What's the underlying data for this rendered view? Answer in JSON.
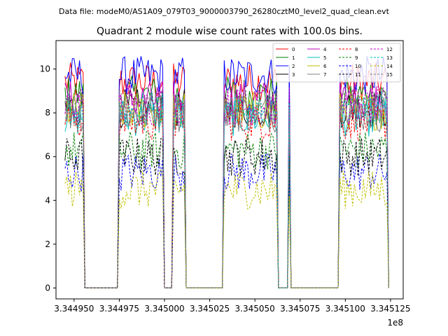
{
  "header": {
    "datafile_text": "Data file: modeM0/AS1A09_079T03_9000003790_26280cztM0_level2_quad_clean.evt"
  },
  "chart_data": {
    "type": "line",
    "title": "Quadrant 2 module wise count rates with 100.0s bins.",
    "xlabel": "",
    "ylabel": "",
    "x_offset_label": "1e8",
    "x_scale": 100000000,
    "xlim": [
      3.34494,
      3.345132
    ],
    "ylim": [
      -0.5,
      11.3
    ],
    "xticks": [
      3.34495,
      3.344975,
      3.345,
      3.345025,
      3.34505,
      3.345075,
      3.3451,
      3.345125
    ],
    "xtick_labels": [
      "3.344950",
      "3.344975",
      "3.345000",
      "3.345025",
      "3.345050",
      "3.345075",
      "3.345100",
      "3.345125"
    ],
    "yticks": [
      0,
      2,
      4,
      6,
      8,
      10
    ],
    "ytick_labels": [
      "0",
      "2",
      "4",
      "6",
      "8",
      "10"
    ],
    "legend_position": "top-right",
    "gti_segments": [
      {
        "start": 3.344945,
        "end": 3.344956
      },
      {
        "start": 3.344975,
        "end": 3.345
      },
      {
        "start": 3.345005,
        "end": 3.3450115
      },
      {
        "start": 3.345033,
        "end": 3.345063
      },
      {
        "start": 3.3450665,
        "end": 3.345067
      },
      {
        "start": 3.3450685,
        "end": 3.3450695
      },
      {
        "start": 3.345097,
        "end": 3.345124
      }
    ],
    "bin_width": 1e-06,
    "series": [
      {
        "name": "0",
        "color": "#ff0000",
        "dash": "solid",
        "mean": 9.4
      },
      {
        "name": "1",
        "color": "#008000",
        "dash": "solid",
        "mean": 8.8
      },
      {
        "name": "2",
        "color": "#0000ff",
        "dash": "solid",
        "mean": 9.7
      },
      {
        "name": "3",
        "color": "#000000",
        "dash": "solid",
        "mean": 8.2
      },
      {
        "name": "4",
        "color": "#bf00bf",
        "dash": "solid",
        "mean": 8.6
      },
      {
        "name": "5",
        "color": "#00bfbf",
        "dash": "solid",
        "mean": 7.8
      },
      {
        "name": "6",
        "color": "#bfbf00",
        "dash": "solid",
        "mean": 8.1
      },
      {
        "name": "7",
        "color": "#808080",
        "dash": "solid",
        "mean": 8.0
      },
      {
        "name": "8",
        "color": "#ff0000",
        "dash": "dashed",
        "mean": 7.6
      },
      {
        "name": "9",
        "color": "#008000",
        "dash": "dashed",
        "mean": 6.3
      },
      {
        "name": "10",
        "color": "#0000ff",
        "dash": "dashed",
        "mean": 5.3
      },
      {
        "name": "11",
        "color": "#000000",
        "dash": "dashed",
        "mean": 6.0
      },
      {
        "name": "12",
        "color": "#bf00bf",
        "dash": "dashed",
        "mean": 8.3
      },
      {
        "name": "13",
        "color": "#00bfbf",
        "dash": "dashed",
        "mean": 8.1
      },
      {
        "name": "14",
        "color": "#bfbf00",
        "dash": "dashed",
        "mean": 4.5
      },
      {
        "name": "15",
        "color": "#808080",
        "dash": "dashed",
        "mean": 8.2
      }
    ]
  }
}
